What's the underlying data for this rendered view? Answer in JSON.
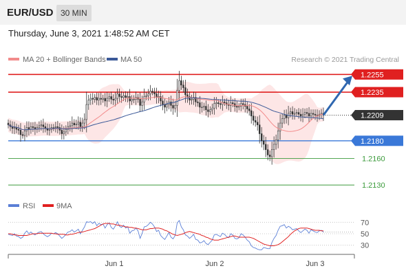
{
  "header": {
    "symbol": "EUR/USD",
    "timeframe": "30 MIN"
  },
  "datetime": "Thursday, June 3, 2021 1:48:52 AM CET",
  "colors": {
    "ma20": "#f28b8b",
    "ma50": "#3b5998",
    "band_fill": "#fde3e3",
    "resistance": "#e02020",
    "support_blue": "#3a78d8",
    "support_green": "#3a9a3a",
    "arrow": "#2f67b0",
    "rsi": "#5b7fd6",
    "rsi_ma": "#e02020",
    "current": "#333333"
  },
  "chart_data": [
    {
      "type": "candlestick",
      "legend_position": "top-left",
      "legend": [
        {
          "name": "MA 20 + Bollinger Bands",
          "color": "#f28b8b"
        },
        {
          "name": "MA 50",
          "color": "#3b5998"
        }
      ],
      "credit": "Research © 2021 Trading Central",
      "x_ticks": [
        "Jun 1",
        "Jun 2",
        "Jun 3"
      ],
      "ylim": [
        1.212,
        1.2263
      ],
      "levels": [
        {
          "label": "1.2255",
          "value": 1.2255,
          "kind": "resistance"
        },
        {
          "label": "1.2235",
          "value": 1.2235,
          "kind": "resistance"
        },
        {
          "label": "1.2209",
          "value": 1.2209,
          "kind": "current"
        },
        {
          "label": "1.2180",
          "value": 1.218,
          "kind": "support_blue"
        },
        {
          "label": "1.2160",
          "value": 1.216,
          "kind": "support_green"
        },
        {
          "label": "1.2130",
          "value": 1.213,
          "kind": "support_green"
        }
      ],
      "close": [
        1.2198,
        1.2196,
        1.2194,
        1.2195,
        1.2193,
        1.2192,
        1.2187,
        1.2186,
        1.2191,
        1.2195,
        1.2193,
        1.2196,
        1.2195,
        1.2193,
        1.2195,
        1.2197,
        1.2198,
        1.2196,
        1.2194,
        1.2192,
        1.2193,
        1.2195,
        1.2195,
        1.2196,
        1.2195,
        1.2192,
        1.2188,
        1.219,
        1.2193,
        1.2196,
        1.2197,
        1.22,
        1.2198,
        1.2199,
        1.2201,
        1.2196,
        1.22,
        1.2204,
        1.2221,
        1.2226,
        1.2228,
        1.2227,
        1.2229,
        1.2226,
        1.2228,
        1.2227,
        1.2228,
        1.2225,
        1.2228,
        1.223,
        1.2227,
        1.2226,
        1.2228,
        1.2233,
        1.223,
        1.2229,
        1.2231,
        1.2229,
        1.223,
        1.2225,
        1.2227,
        1.2227,
        1.2229,
        1.2227,
        1.222,
        1.2224,
        1.223,
        1.2231,
        1.2233,
        1.2236,
        1.2235,
        1.2233,
        1.2229,
        1.223,
        1.2225,
        1.2221,
        1.2218,
        1.2221,
        1.2224,
        1.222,
        1.2217,
        1.222,
        1.2237,
        1.2248,
        1.2243,
        1.224,
        1.2232,
        1.223,
        1.2226,
        1.2227,
        1.2229,
        1.2224,
        1.2223,
        1.2218,
        1.2218,
        1.2219,
        1.2215,
        1.2213,
        1.2215,
        1.2217,
        1.2222,
        1.2223,
        1.2222,
        1.2221,
        1.2224,
        1.2223,
        1.2221,
        1.222,
        1.2223,
        1.2222,
        1.2219,
        1.2218,
        1.2219,
        1.2222,
        1.2221,
        1.2219,
        1.2216,
        1.2214,
        1.2208,
        1.2203,
        1.2201,
        1.2198,
        1.2188,
        1.218,
        1.2176,
        1.217,
        1.2164,
        1.2162,
        1.217,
        1.2176,
        1.2181,
        1.2191,
        1.22,
        1.2205,
        1.2209,
        1.2206,
        1.2211,
        1.2213,
        1.221,
        1.2211,
        1.2212,
        1.221,
        1.2208,
        1.221,
        1.2212,
        1.2211,
        1.2208,
        1.2211,
        1.221,
        1.2209,
        1.2208,
        1.221,
        1.2211,
        1.2209
      ]
    },
    {
      "type": "line",
      "legend": [
        {
          "name": "RSI",
          "color": "#5b7fd6"
        },
        {
          "name": "9MA",
          "color": "#e02020"
        }
      ],
      "ylim": [
        20,
        80
      ],
      "y_ticks": [
        70,
        50,
        30
      ],
      "rsi": [
        49,
        48,
        47,
        50,
        46,
        45,
        42,
        44,
        51,
        55,
        50,
        53,
        50,
        48,
        51,
        53,
        54,
        50,
        47,
        45,
        47,
        51,
        50,
        52,
        50,
        46,
        42,
        45,
        49,
        53,
        54,
        57,
        53,
        55,
        58,
        50,
        56,
        62,
        71,
        70,
        71,
        68,
        71,
        64,
        68,
        66,
        67,
        60,
        66,
        69,
        61,
        58,
        64,
        71,
        63,
        61,
        65,
        60,
        62,
        51,
        55,
        56,
        60,
        55,
        42,
        51,
        62,
        63,
        66,
        70,
        67,
        62,
        54,
        56,
        47,
        43,
        40,
        46,
        52,
        44,
        41,
        47,
        69,
        73,
        62,
        57,
        48,
        46,
        42,
        45,
        49,
        40,
        39,
        34,
        35,
        38,
        33,
        31,
        35,
        39,
        48,
        49,
        47,
        45,
        51,
        49,
        45,
        43,
        50,
        48,
        42,
        41,
        43,
        50,
        48,
        44,
        39,
        36,
        29,
        26,
        25,
        23,
        22,
        22,
        26,
        25,
        24,
        24,
        35,
        42,
        47,
        56,
        63,
        64,
        66,
        60,
        63,
        61,
        57,
        58,
        59,
        55,
        52,
        55,
        58,
        56,
        51,
        57,
        55,
        53,
        52,
        55,
        56,
        53
      ],
      "rsi_ma": [
        50,
        50,
        49,
        48,
        48,
        47,
        47,
        47,
        47,
        47,
        48,
        49,
        50,
        50,
        50,
        51,
        51,
        51,
        51,
        51,
        51,
        51,
        50,
        50,
        49,
        49,
        49,
        49,
        48,
        48,
        49,
        49,
        50,
        51,
        52,
        53,
        53,
        54,
        55,
        56,
        57,
        58,
        59,
        61,
        63,
        65,
        67,
        68,
        68,
        68,
        67,
        67,
        66,
        65,
        65,
        64,
        63,
        62,
        62,
        61,
        61,
        60,
        60,
        59,
        58,
        57,
        57,
        57,
        58,
        59,
        59,
        60,
        60,
        60,
        59,
        58,
        56,
        55,
        53,
        51,
        49,
        48,
        47,
        48,
        49,
        50,
        52,
        53,
        54,
        53,
        52,
        51,
        50,
        49,
        47,
        46,
        44,
        43,
        41,
        40,
        39,
        39,
        39,
        40,
        41,
        42,
        43,
        44,
        45,
        46,
        46,
        45,
        44,
        44,
        44,
        44,
        44,
        44,
        43,
        42,
        40,
        38,
        36,
        34,
        32,
        31,
        30,
        29,
        29,
        29,
        30,
        31,
        33,
        36,
        39,
        42,
        45,
        49,
        52,
        55,
        57,
        59,
        60,
        60,
        60,
        60,
        59,
        58,
        57,
        56,
        56,
        56,
        55,
        55
      ]
    }
  ]
}
